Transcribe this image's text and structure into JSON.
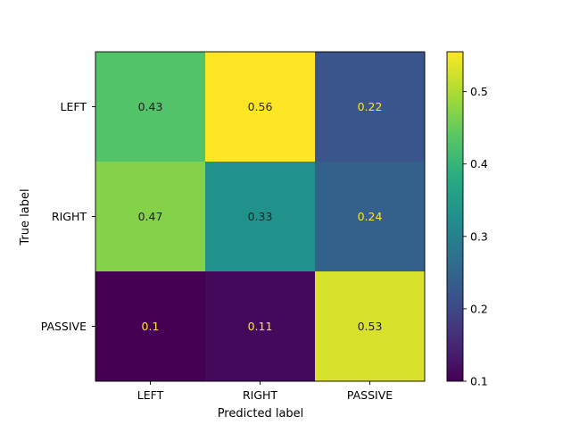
{
  "chart_data": {
    "type": "heatmap",
    "title": "",
    "xlabel": "Predicted label",
    "ylabel": "True label",
    "x_categories": [
      "LEFT",
      "RIGHT",
      "PASSIVE"
    ],
    "y_categories": [
      "LEFT",
      "RIGHT",
      "PASSIVE"
    ],
    "values": [
      [
        0.43,
        0.56,
        0.22
      ],
      [
        0.47,
        0.33,
        0.24
      ],
      [
        0.1,
        0.11,
        0.53
      ]
    ],
    "cell_labels": [
      [
        "0.43",
        "0.56",
        "0.22"
      ],
      [
        "0.47",
        "0.33",
        "0.24"
      ],
      [
        "0.1",
        "0.11",
        "0.53"
      ]
    ],
    "colormap": "viridis",
    "colorbar": {
      "range": [
        0.1,
        0.555
      ],
      "ticks": [
        0.1,
        0.2,
        0.3,
        0.4,
        0.5
      ],
      "tick_labels": [
        "0.1",
        "0.2",
        "0.3",
        "0.4",
        "0.5"
      ]
    },
    "text_color_dark": "#222222",
    "text_color_light": "#fde725"
  }
}
